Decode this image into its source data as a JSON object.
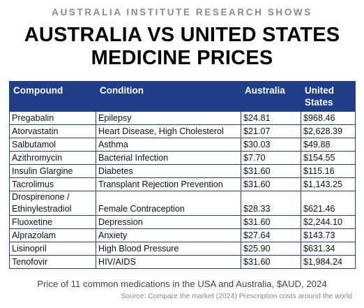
{
  "kicker": "AUSTRALIA INSTITUTE RESEARCH SHOWS",
  "title_line1": "AUSTRALIA VS UNITED STATES",
  "title_line2": "MEDICINE PRICES",
  "table": {
    "headers": [
      "Compound",
      "Condition",
      "Australia",
      "United States"
    ],
    "rows": [
      [
        "Pregabalin",
        "Epilepsy",
        "$24.81",
        "$968.46"
      ],
      [
        "Atorvastatin",
        "Heart Disease, High Cholesterol",
        "$21.07",
        "$2,628.39"
      ],
      [
        "Salbutamol",
        "Asthma",
        "$30.03",
        "$49.88"
      ],
      [
        "Azithromycin",
        "Bacterial Infection",
        "$7.70",
        "$154.55"
      ],
      [
        "Insulin Glargine",
        "Diabetes",
        "$31.60",
        "$115.16"
      ],
      [
        "Tacrolimus",
        "Transplant Rejection Prevention",
        "$31.60",
        "$1,143.25"
      ],
      [
        "Drospirenone / Ethinylestradiol",
        "Female Contraception",
        "$28.33",
        "$621.46"
      ],
      [
        "Fluoxetine",
        "Depression",
        "$31.60",
        "$2,244.10"
      ],
      [
        "Alprazolam",
        "Anxiety",
        "$27.64",
        "$143.73"
      ],
      [
        "Lisinopril",
        "High Blood Pressure",
        "$25.90",
        "$631.34"
      ],
      [
        "Tenofovir",
        "HIV/AIDS",
        "$31.60",
        "$1,984.24"
      ]
    ]
  },
  "caption": "Price of 11 common medications in the USA and Australia, $AUD, 2024",
  "source": "Source: Compare the market (2024) Prescription costs around the world",
  "colors": {
    "header_bg": "#1f3d88",
    "header_text": "#ffffff",
    "kicker": "#8a8a8a"
  }
}
